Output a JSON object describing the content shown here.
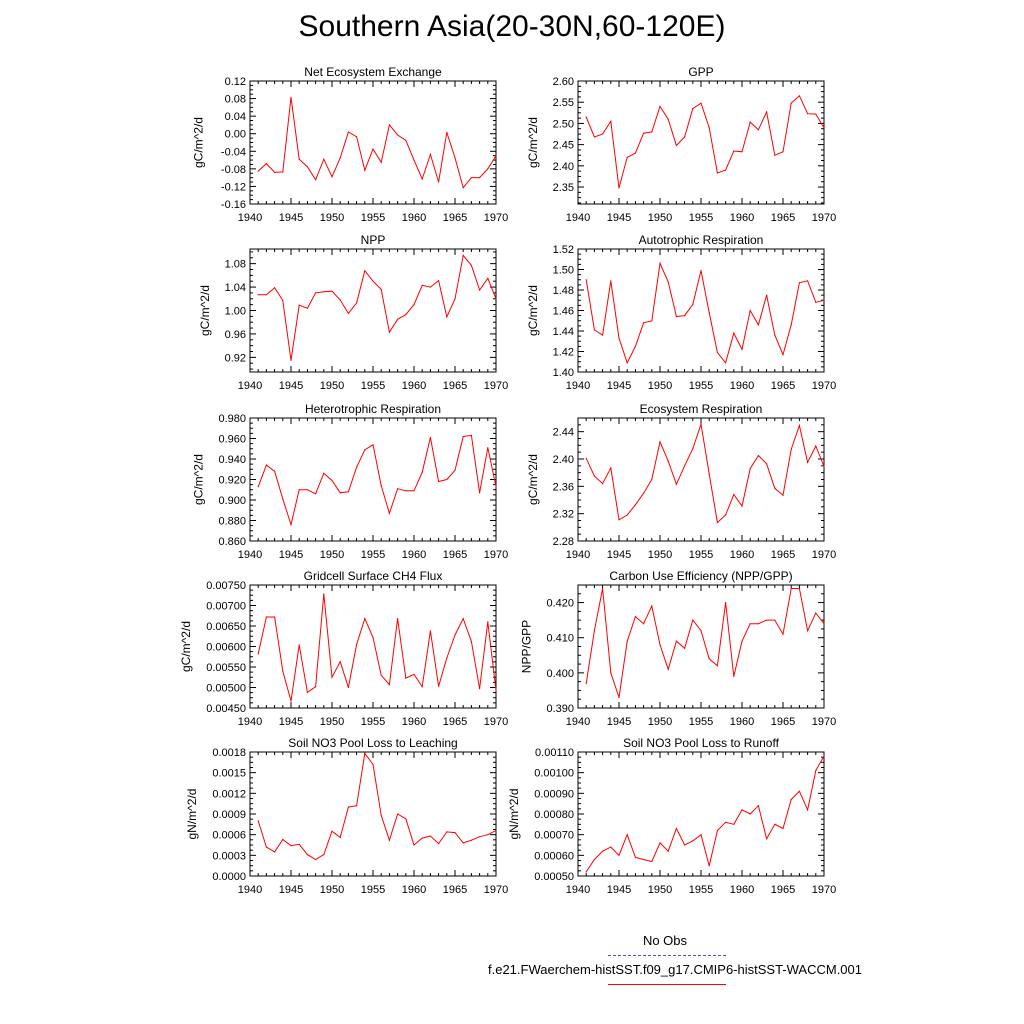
{
  "title": "Southern Asia(20-30N,60-120E)",
  "legend": {
    "obs_label": "No Obs",
    "obs_color": "#4a4ae0",
    "run_label": "f.e21.FWaerchem-histSST.f09_g17.CMIP6-histSST-WACCM.001",
    "run_color": "#ff0000"
  },
  "chart_data": [
    {
      "type": "line",
      "title": "Net Ecosystem Exchange",
      "ylabel": "gC/m^2/d",
      "xlim": [
        1940,
        1970
      ],
      "ylim": [
        -0.16,
        0.12
      ],
      "xticks": [
        "1940",
        "1945",
        "1950",
        "1955",
        "1960",
        "1965",
        "1970"
      ],
      "yticks": [
        "-0.16",
        "-0.12",
        "-0.08",
        "-0.04",
        "0.00",
        "0.04",
        "0.08",
        "0.12"
      ],
      "x": [
        1941,
        1942,
        1943,
        1944,
        1945,
        1946,
        1947,
        1948,
        1949,
        1950,
        1951,
        1952,
        1953,
        1954,
        1955,
        1956,
        1957,
        1958,
        1959,
        1960,
        1961,
        1962,
        1963,
        1964,
        1965,
        1966,
        1967,
        1968,
        1969,
        1970
      ],
      "values": [
        -0.085,
        -0.068,
        -0.088,
        -0.087,
        0.083,
        -0.058,
        -0.075,
        -0.105,
        -0.058,
        -0.098,
        -0.055,
        0.004,
        -0.007,
        -0.083,
        -0.035,
        -0.065,
        0.02,
        -0.003,
        -0.015,
        -0.06,
        -0.103,
        -0.047,
        -0.11,
        0.003,
        -0.055,
        -0.123,
        -0.1,
        -0.1,
        -0.08,
        -0.05
      ]
    },
    {
      "type": "line",
      "title": "GPP",
      "ylabel": "gC/m^2/d",
      "xlim": [
        1940,
        1970
      ],
      "ylim": [
        2.31,
        2.6
      ],
      "xticks": [
        "1940",
        "1945",
        "1950",
        "1955",
        "1960",
        "1965",
        "1970"
      ],
      "yticks": [
        "2.35",
        "2.40",
        "2.45",
        "2.50",
        "2.55",
        "2.60"
      ],
      "x": [
        1941,
        1942,
        1943,
        1944,
        1945,
        1946,
        1947,
        1948,
        1949,
        1950,
        1951,
        1952,
        1953,
        1954,
        1955,
        1956,
        1957,
        1958,
        1959,
        1960,
        1961,
        1962,
        1963,
        1964,
        1965,
        1966,
        1967,
        1968,
        1969,
        1970
      ],
      "values": [
        2.515,
        2.468,
        2.475,
        2.505,
        2.348,
        2.42,
        2.43,
        2.477,
        2.48,
        2.54,
        2.51,
        2.448,
        2.468,
        2.535,
        2.548,
        2.49,
        2.383,
        2.39,
        2.435,
        2.433,
        2.503,
        2.485,
        2.527,
        2.425,
        2.433,
        2.548,
        2.565,
        2.523,
        2.522,
        2.49
      ]
    },
    {
      "type": "line",
      "title": "NPP",
      "ylabel": "gC/m^2/d",
      "xlim": [
        1940,
        1970
      ],
      "ylim": [
        0.895,
        1.105
      ],
      "xticks": [
        "1940",
        "1945",
        "1950",
        "1955",
        "1960",
        "1965",
        "1970"
      ],
      "yticks": [
        "0.92",
        "0.96",
        "1.00",
        "1.04",
        "1.08"
      ],
      "x": [
        1941,
        1942,
        1943,
        1944,
        1945,
        1946,
        1947,
        1948,
        1949,
        1950,
        1951,
        1952,
        1953,
        1954,
        1955,
        1956,
        1957,
        1958,
        1959,
        1960,
        1961,
        1962,
        1963,
        1964,
        1965,
        1966,
        1967,
        1968,
        1969,
        1970
      ],
      "values": [
        1.027,
        1.027,
        1.039,
        1.017,
        0.915,
        1.009,
        1.004,
        1.03,
        1.032,
        1.033,
        1.018,
        0.995,
        1.013,
        1.068,
        1.05,
        1.036,
        0.963,
        0.985,
        0.993,
        1.01,
        1.043,
        1.04,
        1.051,
        0.989,
        1.02,
        1.094,
        1.077,
        1.035,
        1.055,
        1.02
      ]
    },
    {
      "type": "line",
      "title": "Autotrophic Respiration",
      "ylabel": "gC/m^2/d",
      "xlim": [
        1940,
        1970
      ],
      "ylim": [
        1.4,
        1.52
      ],
      "xticks": [
        "1940",
        "1945",
        "1950",
        "1955",
        "1960",
        "1965",
        "1970"
      ],
      "yticks": [
        "1.40",
        "1.42",
        "1.44",
        "1.46",
        "1.48",
        "1.50",
        "1.52"
      ],
      "x": [
        1941,
        1942,
        1943,
        1944,
        1945,
        1946,
        1947,
        1948,
        1949,
        1950,
        1951,
        1952,
        1953,
        1954,
        1955,
        1956,
        1957,
        1958,
        1959,
        1960,
        1961,
        1962,
        1963,
        1964,
        1965,
        1966,
        1967,
        1968,
        1969,
        1970
      ],
      "values": [
        1.49,
        1.441,
        1.436,
        1.489,
        1.433,
        1.409,
        1.425,
        1.448,
        1.45,
        1.506,
        1.488,
        1.454,
        1.455,
        1.466,
        1.499,
        1.458,
        1.419,
        1.409,
        1.438,
        1.422,
        1.46,
        1.446,
        1.475,
        1.436,
        1.417,
        1.446,
        1.487,
        1.489,
        1.468,
        1.47
      ]
    },
    {
      "type": "line",
      "title": "Heterotrophic Respiration",
      "ylabel": "gC/m^2/d",
      "xlim": [
        1940,
        1970
      ],
      "ylim": [
        0.86,
        0.98
      ],
      "xticks": [
        "1940",
        "1945",
        "1950",
        "1955",
        "1960",
        "1965",
        "1970"
      ],
      "yticks": [
        "0.860",
        "0.880",
        "0.900",
        "0.920",
        "0.940",
        "0.960",
        "0.980"
      ],
      "x": [
        1941,
        1942,
        1943,
        1944,
        1945,
        1946,
        1947,
        1948,
        1949,
        1950,
        1951,
        1952,
        1953,
        1954,
        1955,
        1956,
        1957,
        1958,
        1959,
        1960,
        1961,
        1962,
        1963,
        1964,
        1965,
        1966,
        1967,
        1968,
        1969,
        1970
      ],
      "values": [
        0.913,
        0.934,
        0.928,
        0.901,
        0.876,
        0.91,
        0.91,
        0.906,
        0.926,
        0.919,
        0.907,
        0.908,
        0.932,
        0.949,
        0.954,
        0.914,
        0.887,
        0.911,
        0.909,
        0.909,
        0.927,
        0.961,
        0.918,
        0.92,
        0.929,
        0.962,
        0.963,
        0.907,
        0.951,
        0.913
      ]
    },
    {
      "type": "line",
      "title": "Ecosystem Respiration",
      "ylabel": "gC/m^2/d",
      "xlim": [
        1940,
        1970
      ],
      "ylim": [
        2.28,
        2.46
      ],
      "xticks": [
        "1940",
        "1945",
        "1950",
        "1955",
        "1960",
        "1965",
        "1970"
      ],
      "yticks": [
        "2.28",
        "2.32",
        "2.36",
        "2.40",
        "2.44"
      ],
      "x": [
        1941,
        1942,
        1943,
        1944,
        1945,
        1946,
        1947,
        1948,
        1949,
        1950,
        1951,
        1952,
        1953,
        1954,
        1955,
        1956,
        1957,
        1958,
        1959,
        1960,
        1961,
        1962,
        1963,
        1964,
        1965,
        1966,
        1967,
        1968,
        1969,
        1970
      ],
      "values": [
        2.401,
        2.375,
        2.364,
        2.387,
        2.311,
        2.318,
        2.333,
        2.35,
        2.37,
        2.425,
        2.397,
        2.363,
        2.39,
        2.415,
        2.451,
        2.378,
        2.307,
        2.318,
        2.348,
        2.331,
        2.386,
        2.405,
        2.393,
        2.357,
        2.347,
        2.414,
        2.449,
        2.395,
        2.419,
        2.389
      ]
    },
    {
      "type": "line",
      "title": "Gridcell Surface CH4 Flux",
      "ylabel": "gC/m^2/d",
      "xlim": [
        1940,
        1970
      ],
      "ylim": [
        0.0045,
        0.0075
      ],
      "xticks": [
        "1940",
        "1945",
        "1950",
        "1955",
        "1960",
        "1965",
        "1970"
      ],
      "yticks": [
        "0.00450",
        "0.00500",
        "0.00550",
        "0.00600",
        "0.00650",
        "0.00700",
        "0.00750"
      ],
      "x": [
        1941,
        1942,
        1943,
        1944,
        1945,
        1946,
        1947,
        1948,
        1949,
        1950,
        1951,
        1952,
        1953,
        1954,
        1955,
        1956,
        1957,
        1958,
        1959,
        1960,
        1961,
        1962,
        1963,
        1964,
        1965,
        1966,
        1967,
        1968,
        1969,
        1970
      ],
      "values": [
        0.00582,
        0.00672,
        0.00672,
        0.0054,
        0.00467,
        0.00604,
        0.00488,
        0.00502,
        0.00728,
        0.00525,
        0.00563,
        0.005,
        0.00605,
        0.00668,
        0.00622,
        0.0053,
        0.00507,
        0.00668,
        0.00523,
        0.00532,
        0.00502,
        0.00638,
        0.00503,
        0.00572,
        0.00628,
        0.00668,
        0.00612,
        0.00497,
        0.0066,
        0.00493
      ]
    },
    {
      "type": "line",
      "title": "Carbon Use Efficiency (NPP/GPP)",
      "ylabel": "NPP/GPP",
      "xlim": [
        1940,
        1970
      ],
      "ylim": [
        0.39,
        0.425
      ],
      "xticks": [
        "1940",
        "1945",
        "1950",
        "1955",
        "1960",
        "1965",
        "1970"
      ],
      "yticks": [
        "0.390",
        "0.400",
        "0.410",
        "0.420"
      ],
      "x": [
        1941,
        1942,
        1943,
        1944,
        1945,
        1946,
        1947,
        1948,
        1949,
        1950,
        1951,
        1952,
        1953,
        1954,
        1955,
        1956,
        1957,
        1958,
        1959,
        1960,
        1961,
        1962,
        1963,
        1964,
        1965,
        1966,
        1967,
        1968,
        1969,
        1970
      ],
      "values": [
        0.397,
        0.412,
        0.424,
        0.4,
        0.393,
        0.409,
        0.416,
        0.414,
        0.419,
        0.408,
        0.401,
        0.409,
        0.407,
        0.415,
        0.412,
        0.404,
        0.402,
        0.42,
        0.399,
        0.409,
        0.414,
        0.414,
        0.415,
        0.415,
        0.411,
        0.424,
        0.424,
        0.412,
        0.417,
        0.414
      ]
    },
    {
      "type": "line",
      "title": "Soil NO3 Pool Loss to Leaching",
      "ylabel": "gN/m^2/d",
      "xlim": [
        1940,
        1970
      ],
      "ylim": [
        0,
        0.0018
      ],
      "xticks": [
        "1940",
        "1945",
        "1950",
        "1955",
        "1960",
        "1965",
        "1970"
      ],
      "yticks": [
        "0.0000",
        "0.0003",
        "0.0006",
        "0.0009",
        "0.0012",
        "0.0015",
        "0.0018"
      ],
      "x": [
        1941,
        1942,
        1943,
        1944,
        1945,
        1946,
        1947,
        1948,
        1949,
        1950,
        1951,
        1952,
        1953,
        1954,
        1955,
        1956,
        1957,
        1958,
        1959,
        1960,
        1961,
        1962,
        1963,
        1964,
        1965,
        1966,
        1967,
        1968,
        1969,
        1970
      ],
      "values": [
        0.0008,
        0.00042,
        0.00035,
        0.00053,
        0.00044,
        0.00046,
        0.00031,
        0.00024,
        0.00031,
        0.00065,
        0.00056,
        0.001,
        0.00102,
        0.00178,
        0.00162,
        0.00088,
        0.00052,
        0.0009,
        0.00083,
        0.00045,
        0.00055,
        0.00058,
        0.00047,
        0.00064,
        0.00063,
        0.00048,
        0.00052,
        0.00057,
        0.0006,
        0.00066
      ]
    },
    {
      "type": "line",
      "title": "Soil NO3 Pool Loss to Runoff",
      "ylabel": "gN/m^2/d",
      "xlim": [
        1940,
        1970
      ],
      "ylim": [
        0.0005,
        0.0011
      ],
      "xticks": [
        "1940",
        "1945",
        "1950",
        "1955",
        "1960",
        "1965",
        "1970"
      ],
      "yticks": [
        "0.00050",
        "0.00060",
        "0.00070",
        "0.00080",
        "0.00090",
        "0.00100",
        "0.00110"
      ],
      "x": [
        1941,
        1942,
        1943,
        1944,
        1945,
        1946,
        1947,
        1948,
        1949,
        1950,
        1951,
        1952,
        1953,
        1954,
        1955,
        1956,
        1957,
        1958,
        1959,
        1960,
        1961,
        1962,
        1963,
        1964,
        1965,
        1966,
        1967,
        1968,
        1969,
        1970
      ],
      "values": [
        0.00052,
        0.00058,
        0.00062,
        0.00064,
        0.0006,
        0.0007,
        0.00059,
        0.00058,
        0.00057,
        0.00066,
        0.00062,
        0.00073,
        0.00065,
        0.00067,
        0.0007,
        0.00055,
        0.00072,
        0.00076,
        0.00075,
        0.00082,
        0.0008,
        0.00084,
        0.00068,
        0.00075,
        0.00073,
        0.00087,
        0.00091,
        0.00082,
        0.00101,
        0.00108
      ]
    }
  ]
}
